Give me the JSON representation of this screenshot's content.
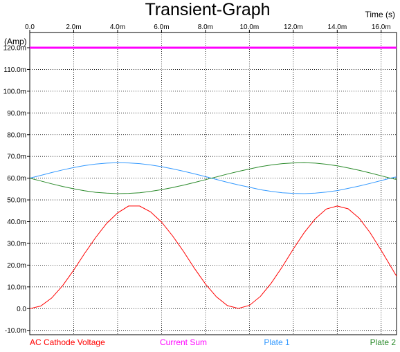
{
  "chart_data": {
    "type": "line",
    "title": "Transient-Graph",
    "xlabel": "Time  (s)",
    "ylabel": "(Amp)",
    "xlim": [
      0,
      0.0167
    ],
    "ylim": [
      -0.012,
      0.127
    ],
    "grid": true,
    "legend_position": "bottom",
    "x_ticks": [
      0,
      0.002,
      0.004,
      0.006,
      0.008,
      0.01,
      0.012,
      0.014,
      0.016
    ],
    "x_tick_labels": [
      "0.0",
      "2.0m",
      "4.0m",
      "6.0m",
      "8.0m",
      "10.0m",
      "12.0m",
      "14.0m",
      "16.0m"
    ],
    "y_ticks": [
      -0.01,
      0,
      0.01,
      0.02,
      0.03,
      0.04,
      0.05,
      0.06,
      0.07,
      0.08,
      0.09,
      0.1,
      0.11,
      0.12
    ],
    "y_tick_labels": [
      "-10.0m",
      "0.0",
      "10.0m",
      "20.0m",
      "30.0m",
      "40.0m",
      "50.0m",
      "60.0m",
      "70.0m",
      "80.0m",
      "90.0m",
      "100.0m",
      "110.0m",
      "120.0m"
    ],
    "x": [
      0,
      0.0005,
      0.001,
      0.0015,
      0.002,
      0.0025,
      0.003,
      0.0035,
      0.004,
      0.0045,
      0.005,
      0.0055,
      0.006,
      0.0065,
      0.007,
      0.0075,
      0.008,
      0.0085,
      0.009,
      0.0095,
      0.01,
      0.0105,
      0.011,
      0.0115,
      0.012,
      0.0125,
      0.013,
      0.0135,
      0.014,
      0.0145,
      0.015,
      0.0155,
      0.016,
      0.0165,
      0.0167
    ],
    "series": [
      {
        "name": "AC Cathode Voltage",
        "color": "#ff0000",
        "values": [
          0,
          0.0012,
          0.0049,
          0.0106,
          0.0177,
          0.0254,
          0.0327,
          0.0392,
          0.044,
          0.0472,
          0.0472,
          0.0445,
          0.0398,
          0.0335,
          0.0263,
          0.0185,
          0.0113,
          0.0054,
          0.0014,
          0.0001,
          0.0015,
          0.0056,
          0.0118,
          0.0193,
          0.0274,
          0.035,
          0.0413,
          0.0458,
          0.0472,
          0.0459,
          0.0416,
          0.0349,
          0.0268,
          0.0183,
          0.0149
        ]
      },
      {
        "name": "Current Sum",
        "color": "#ff00ff",
        "values": [
          0.12,
          0.12,
          0.12,
          0.12,
          0.12,
          0.12,
          0.12,
          0.12,
          0.12,
          0.12,
          0.12,
          0.12,
          0.12,
          0.12,
          0.12,
          0.12,
          0.12,
          0.12,
          0.12,
          0.12,
          0.12,
          0.12,
          0.12,
          0.12,
          0.12,
          0.12,
          0.12,
          0.12,
          0.12,
          0.12,
          0.12,
          0.12,
          0.12,
          0.12,
          0.12
        ]
      },
      {
        "name": "Plate 1",
        "color": "#3399ff",
        "values": [
          0.06,
          0.0613,
          0.0626,
          0.0638,
          0.0649,
          0.0658,
          0.0665,
          0.0669,
          0.0671,
          0.067,
          0.0667,
          0.0661,
          0.0653,
          0.0643,
          0.0632,
          0.062,
          0.0607,
          0.0594,
          0.0581,
          0.0569,
          0.0558,
          0.0547,
          0.0539,
          0.0533,
          0.053,
          0.0529,
          0.0531,
          0.0536,
          0.0543,
          0.0553,
          0.0564,
          0.0576,
          0.0589,
          0.0602,
          0.0606
        ]
      },
      {
        "name": "Plate 2",
        "color": "#2a8a2a",
        "values": [
          0.06,
          0.0587,
          0.0574,
          0.0562,
          0.0551,
          0.0542,
          0.0535,
          0.0531,
          0.0529,
          0.053,
          0.0533,
          0.0539,
          0.0547,
          0.0557,
          0.0568,
          0.058,
          0.0593,
          0.0606,
          0.0619,
          0.0631,
          0.0642,
          0.0653,
          0.0661,
          0.0667,
          0.067,
          0.0671,
          0.0669,
          0.0664,
          0.0657,
          0.0647,
          0.0636,
          0.0624,
          0.0611,
          0.0598,
          0.0594
        ]
      }
    ]
  }
}
